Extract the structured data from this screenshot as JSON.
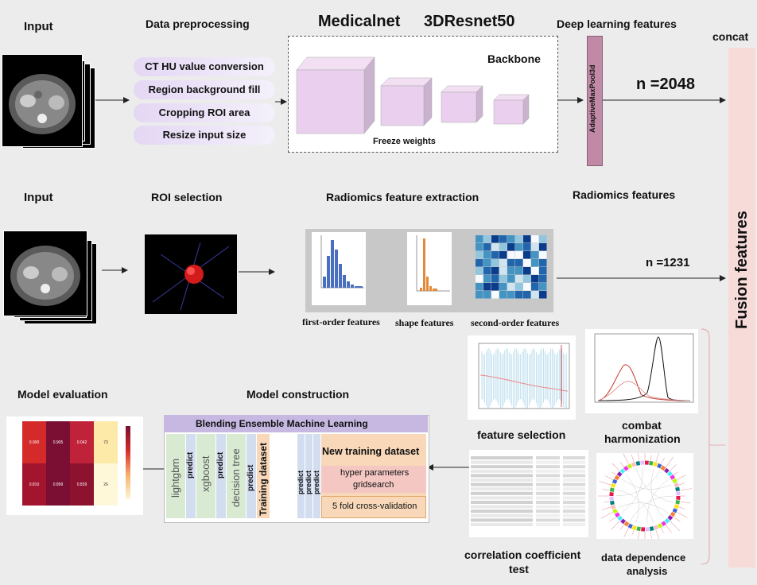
{
  "top": {
    "input_label": "Input",
    "preprocessing_label": "Data preprocessing",
    "steps": [
      "CT HU value conversion",
      "Region background fill",
      "Cropping ROI area",
      "Resize input size"
    ],
    "network_title_left": "Medicalnet",
    "network_title_right": "3DResnet50",
    "backbone_label": "Backbone",
    "freeze_label": "Freeze weights",
    "dl_features_label": "Deep learning features",
    "pool_label": "AdaptiveMaxPool3d",
    "dl_count": "n =2048",
    "concat_label": "concat"
  },
  "middle": {
    "input_label": "Input",
    "roi_label": "ROI selection",
    "extraction_label": "Radiomics feature extraction",
    "radiomics_features_label": "Radiomics features",
    "radiomics_count": "n =1231",
    "first_order_label": "first-order features",
    "shape_label": "shape features",
    "second_order_label": "second-order features"
  },
  "fusion_label": "Fusion features",
  "bottom": {
    "evaluation_label": "Model evaluation",
    "construction_label": "Model construction",
    "ensemble_title": "Blending Ensemble Machine Learning",
    "models": [
      "lightgbm",
      "xgboost",
      "decision tree"
    ],
    "predict_label": "predict",
    "training_dataset_label": "Training dataset",
    "new_training_label": "New training dataset",
    "hyper_label_1": "hyper parameters",
    "hyper_label_2": "gridsearch",
    "cv_label": "5 fold cross-validation",
    "feature_selection_label": "feature selection",
    "combat_label_1": "combat",
    "combat_label_2": "harmonization",
    "correlation_label_1": "correlation coefficient",
    "correlation_label_2": "test",
    "dependence_label_1": "data dependence",
    "dependence_label_2": "analysis"
  },
  "heatmap": {
    "row1": [
      "0.000",
      "0.905",
      "0.042",
      "73"
    ],
    "row2": [
      "0.810",
      "0.899",
      "0.839",
      "26"
    ]
  },
  "colors": {
    "pill": "#e4d7f4",
    "cube": "#e9c8ee",
    "pool_bar": "#c08aa6",
    "fusion_bar": "#f6dbd9",
    "ensemble_header": "#c7b8e2",
    "model_green": "#d9ead3",
    "predict_blue": "#d3ddf0",
    "training_orange": "#f8d8b8",
    "hyper_pink": "#f4c7c3",
    "histogram_blue": "#4a6fc0",
    "shape_orange": "#e28a3a",
    "heat_dark": "#7a0f33"
  }
}
